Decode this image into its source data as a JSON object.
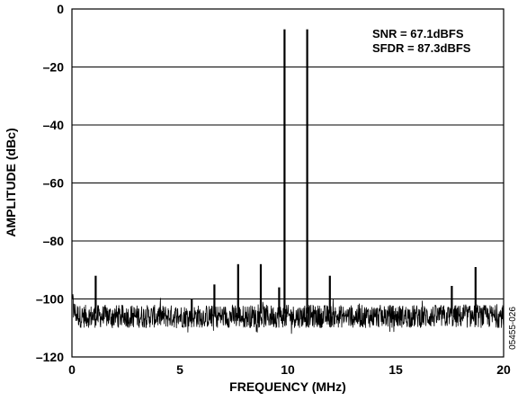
{
  "chart_data": {
    "type": "line",
    "xlabel": "FREQUENCY (MHz)",
    "ylabel": "AMPLITUDE (dBc)",
    "xlim": [
      0,
      20
    ],
    "ylim": [
      -120,
      0
    ],
    "x_ticks": [
      0,
      5,
      10,
      15,
      20
    ],
    "y_ticks": [
      0,
      -20,
      -40,
      -60,
      -80,
      -100,
      -120
    ],
    "x_tick_labels": [
      "0",
      "5",
      "10",
      "15",
      "20"
    ],
    "y_tick_labels": [
      "0",
      "–20",
      "–40",
      "–60",
      "–80",
      "–100",
      "–120"
    ],
    "grid": "horizontal",
    "annotations": [
      "SNR = 67.1dBFS",
      "SFDR = 87.3dBFS"
    ],
    "side_code": "05455-026",
    "line_color": "#000000",
    "noise_floor_dbc": -106,
    "noise_spread_db": 4,
    "series": [
      {
        "peaks": [
          {
            "x": 9.85,
            "y": -7
          },
          {
            "x": 10.9,
            "y": -7
          },
          {
            "x": 1.1,
            "y": -92
          },
          {
            "x": 5.55,
            "y": -100
          },
          {
            "x": 6.6,
            "y": -95
          },
          {
            "x": 7.7,
            "y": -88
          },
          {
            "x": 8.75,
            "y": -88
          },
          {
            "x": 9.6,
            "y": -96
          },
          {
            "x": 11.95,
            "y": -92
          },
          {
            "x": 17.6,
            "y": -95.5
          },
          {
            "x": 18.7,
            "y": -89
          }
        ]
      }
    ]
  }
}
